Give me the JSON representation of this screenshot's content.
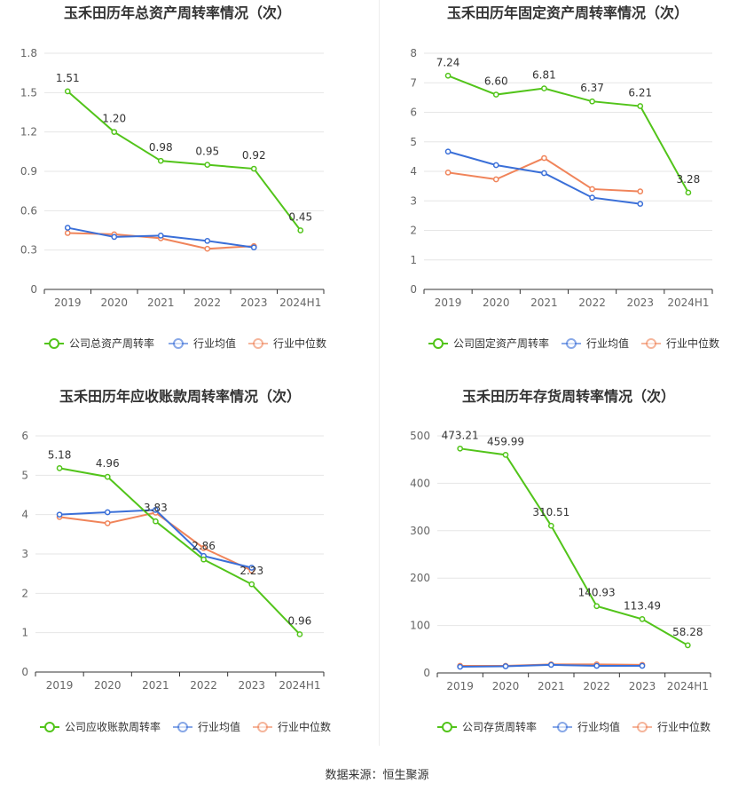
{
  "footer": "数据来源：恒生聚源",
  "legend_common": {
    "industry_avg": "行业均值",
    "industry_median": "行业中位数"
  },
  "colors": {
    "company": "#52c41a",
    "avg": "#3a6fd8",
    "median": "#f0845a",
    "grid": "#e6e6e6",
    "axis": "#333333",
    "tick": "#666666"
  },
  "chart_data": [
    {
      "type": "line",
      "title": "玉禾田历年总资产周转率情况（次）",
      "x": [
        "2019",
        "2020",
        "2021",
        "2022",
        "2023",
        "2024H1"
      ],
      "ylim": [
        0,
        1.8
      ],
      "yticks": [
        "0",
        "0.3",
        "0.6",
        "0.9",
        "1.2",
        "1.5",
        "1.8"
      ],
      "series": [
        {
          "name": "公司总资产周转率",
          "values": [
            1.51,
            1.2,
            0.98,
            0.95,
            0.92,
            0.45
          ],
          "labels": [
            "1.51",
            "1.20",
            "0.98",
            "0.95",
            "0.92",
            "0.45"
          ]
        },
        {
          "name": "行业均值",
          "values": [
            0.47,
            0.4,
            0.41,
            0.37,
            0.32,
            null
          ]
        },
        {
          "name": "行业中位数",
          "values": [
            0.43,
            0.42,
            0.39,
            0.31,
            0.33,
            null
          ]
        }
      ]
    },
    {
      "type": "line",
      "title": "玉禾田历年固定资产周转率情况（次）",
      "x": [
        "2019",
        "2020",
        "2021",
        "2022",
        "2023",
        "2024H1"
      ],
      "ylim": [
        0,
        8
      ],
      "yticks": [
        "0",
        "1",
        "2",
        "3",
        "4",
        "5",
        "6",
        "7",
        "8"
      ],
      "series": [
        {
          "name": "公司固定资产周转率",
          "values": [
            7.24,
            6.6,
            6.81,
            6.37,
            6.21,
            3.28
          ],
          "labels": [
            "7.24",
            "6.60",
            "6.81",
            "6.37",
            "6.21",
            "3.28"
          ]
        },
        {
          "name": "行业均值",
          "values": [
            4.67,
            4.21,
            3.94,
            3.11,
            2.9,
            null
          ]
        },
        {
          "name": "行业中位数",
          "values": [
            3.96,
            3.73,
            4.45,
            3.4,
            3.32,
            null
          ]
        }
      ]
    },
    {
      "type": "line",
      "title": "玉禾田历年应收账款周转率情况（次）",
      "x": [
        "2019",
        "2020",
        "2021",
        "2022",
        "2023",
        "2024H1"
      ],
      "ylim": [
        0,
        6
      ],
      "yticks": [
        "0",
        "1",
        "2",
        "3",
        "4",
        "5",
        "6"
      ],
      "series": [
        {
          "name": "公司应收账款周转率",
          "values": [
            5.18,
            4.96,
            3.83,
            2.86,
            2.23,
            0.96
          ],
          "labels": [
            "5.18",
            "4.96",
            "3.83",
            "2.86",
            "2.23",
            "0.96"
          ]
        },
        {
          "name": "行业均值",
          "values": [
            4.0,
            4.06,
            4.12,
            2.95,
            2.65,
            null
          ]
        },
        {
          "name": "行业中位数",
          "values": [
            3.94,
            3.78,
            4.05,
            3.15,
            2.58,
            null
          ]
        }
      ]
    },
    {
      "type": "line",
      "title": "玉禾田历年存货周转率情况（次）",
      "x": [
        "2019",
        "2020",
        "2021",
        "2022",
        "2023",
        "2024H1"
      ],
      "ylim": [
        0,
        500
      ],
      "yticks": [
        "0",
        "100",
        "200",
        "300",
        "400",
        "500"
      ],
      "series": [
        {
          "name": "公司存货周转率",
          "values": [
            473.21,
            459.99,
            310.51,
            140.93,
            113.49,
            58.28
          ],
          "labels": [
            "473.21",
            "459.99",
            "310.51",
            "140.93",
            "113.49",
            "58.28"
          ]
        },
        {
          "name": "行业均值",
          "values": [
            13,
            14,
            17,
            15,
            15,
            null
          ]
        },
        {
          "name": "行业中位数",
          "values": [
            15,
            15,
            18,
            18,
            17,
            null
          ]
        }
      ]
    }
  ]
}
